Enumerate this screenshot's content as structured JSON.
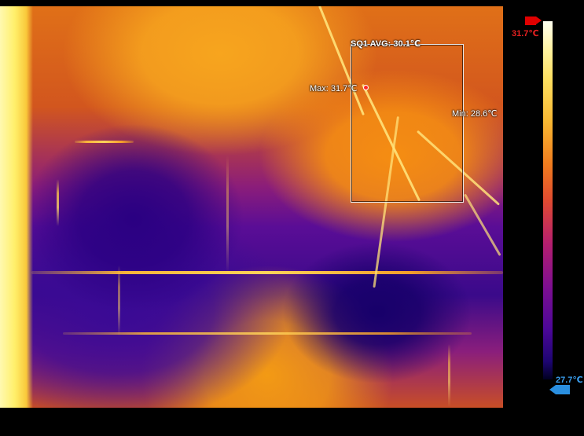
{
  "measurement": {
    "roi_label": "SQ1 AVG: 30.1℃",
    "max_label": "Max: 31.7℃",
    "min_label": "Min: 28.6℃"
  },
  "scale": {
    "max_text": "31.7℃",
    "min_text": "27.7℃",
    "max_color": "#e00000",
    "min_color": "#2a8fe0",
    "palette": "iron"
  }
}
